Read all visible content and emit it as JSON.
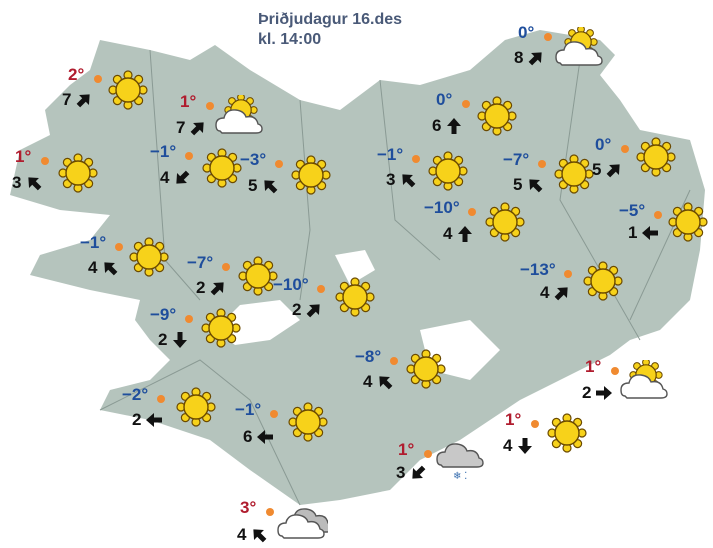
{
  "header": {
    "day": "Þriðjudagur 16.des",
    "time": "kl. 14:00"
  },
  "colors": {
    "land": "#b5c4bd",
    "positive_temp": "#b01c2e",
    "negative_temp": "#1f4e9c",
    "station_dot": "#f08a30",
    "sun": "#f7d21a"
  },
  "stations": [
    {
      "temp": "2°",
      "wind": "7",
      "dir": "NE",
      "icon": "sun-icon"
    },
    {
      "temp": "1°",
      "wind": "7",
      "dir": "NE",
      "icon": "partly-cloudy-icon"
    },
    {
      "temp": "1°",
      "wind": "3",
      "dir": "NW",
      "icon": "sun-icon"
    },
    {
      "temp": "−1°",
      "wind": "4",
      "dir": "SW",
      "icon": "sun-icon"
    },
    {
      "temp": "−3°",
      "wind": "5",
      "dir": "NW",
      "icon": "sun-icon"
    },
    {
      "temp": "0°",
      "wind": "8",
      "dir": "NE",
      "icon": "partly-cloudy-icon"
    },
    {
      "temp": "0°",
      "wind": "6",
      "dir": "N",
      "icon": "sun-icon"
    },
    {
      "temp": "−1°",
      "wind": "3",
      "dir": "NW",
      "icon": "sun-icon"
    },
    {
      "temp": "−7°",
      "wind": "5",
      "dir": "NW",
      "icon": "sun-icon"
    },
    {
      "temp": "0°",
      "wind": "5",
      "dir": "NE",
      "icon": "sun-icon"
    },
    {
      "temp": "−10°",
      "wind": "4",
      "dir": "N",
      "icon": "sun-icon"
    },
    {
      "temp": "−5°",
      "wind": "1",
      "dir": "W",
      "icon": "sun-icon"
    },
    {
      "temp": "−1°",
      "wind": "4",
      "dir": "NW",
      "icon": "sun-icon"
    },
    {
      "temp": "−7°",
      "wind": "2",
      "dir": "NE",
      "icon": "sun-icon"
    },
    {
      "temp": "−10°",
      "wind": "2",
      "dir": "NE",
      "icon": "sun-icon"
    },
    {
      "temp": "−13°",
      "wind": "4",
      "dir": "NE",
      "icon": "sun-icon"
    },
    {
      "temp": "−9°",
      "wind": "2",
      "dir": "S",
      "icon": "sun-icon"
    },
    {
      "temp": "−8°",
      "wind": "4",
      "dir": "NW",
      "icon": "sun-icon"
    },
    {
      "temp": "1°",
      "wind": "2",
      "dir": "E",
      "icon": "partly-cloudy-icon"
    },
    {
      "temp": "−2°",
      "wind": "2",
      "dir": "W",
      "icon": "sun-icon"
    },
    {
      "temp": "−1°",
      "wind": "6",
      "dir": "W",
      "icon": "sun-icon"
    },
    {
      "temp": "1°",
      "wind": "4",
      "dir": "S",
      "icon": "sun-icon"
    },
    {
      "temp": "1°",
      "wind": "3",
      "dir": "SW",
      "icon": "sleet-icon"
    },
    {
      "temp": "3°",
      "wind": "4",
      "dir": "NW",
      "icon": "cloudy-icon"
    }
  ]
}
